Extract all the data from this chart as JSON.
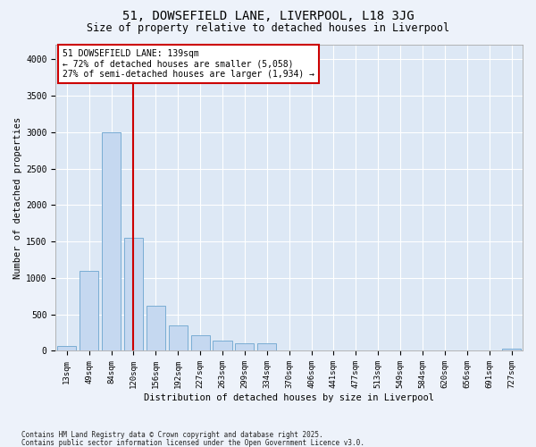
{
  "title_line1": "51, DOWSEFIELD LANE, LIVERPOOL, L18 3JG",
  "title_line2": "Size of property relative to detached houses in Liverpool",
  "xlabel": "Distribution of detached houses by size in Liverpool",
  "ylabel": "Number of detached properties",
  "bar_labels": [
    "13sqm",
    "49sqm",
    "84sqm",
    "120sqm",
    "156sqm",
    "192sqm",
    "227sqm",
    "263sqm",
    "299sqm",
    "334sqm",
    "370sqm",
    "406sqm",
    "441sqm",
    "477sqm",
    "513sqm",
    "549sqm",
    "584sqm",
    "620sqm",
    "656sqm",
    "691sqm",
    "727sqm"
  ],
  "bar_values": [
    70,
    1100,
    3000,
    1550,
    620,
    350,
    210,
    140,
    100,
    110,
    10,
    5,
    5,
    5,
    3,
    3,
    2,
    2,
    2,
    1,
    30
  ],
  "bar_color": "#c5d8f0",
  "bar_edge_color": "#7aadd4",
  "vline_x_idx": 3,
  "vline_color": "#cc0000",
  "annotation_title": "51 DOWSEFIELD LANE: 139sqm",
  "annotation_line2": "← 72% of detached houses are smaller (5,058)",
  "annotation_line3": "27% of semi-detached houses are larger (1,934) →",
  "ylim": [
    0,
    4200
  ],
  "yticks": [
    0,
    500,
    1000,
    1500,
    2000,
    2500,
    3000,
    3500,
    4000
  ],
  "footnote1": "Contains HM Land Registry data © Crown copyright and database right 2025.",
  "footnote2": "Contains public sector information licensed under the Open Government Licence v3.0.",
  "bg_color": "#edf2fa",
  "plot_bg_color": "#dde8f5",
  "grid_color": "#ffffff",
  "title1_fontsize": 10,
  "title2_fontsize": 8.5,
  "tick_fontsize": 6.5,
  "ylabel_fontsize": 7.5,
  "xlabel_fontsize": 7.5,
  "footnote_fontsize": 5.5,
  "annot_fontsize": 7.0
}
